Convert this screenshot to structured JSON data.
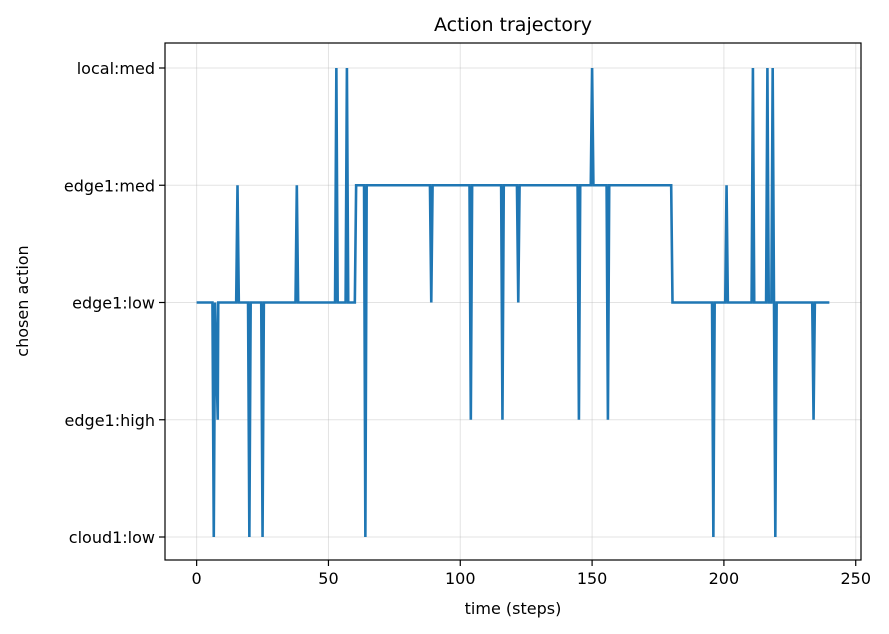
{
  "chart_data": {
    "type": "line",
    "step": true,
    "title": "Action trajectory",
    "xlabel": "time (steps)",
    "ylabel": "chosen action",
    "xlim": [
      -12,
      252
    ],
    "xticks": [
      0,
      50,
      100,
      150,
      200,
      250
    ],
    "categories": [
      "cloud1:low",
      "edge1:high",
      "edge1:low",
      "edge1:med",
      "local:med"
    ],
    "grid": true,
    "series": [
      {
        "color": "#1f77b4",
        "points": [
          [
            0,
            2
          ],
          [
            6,
            2
          ],
          [
            6.5,
            0
          ],
          [
            7,
            2
          ],
          [
            8,
            1
          ],
          [
            8.2,
            2
          ],
          [
            15,
            2
          ],
          [
            15.5,
            3
          ],
          [
            16,
            2
          ],
          [
            19.5,
            2
          ],
          [
            20,
            0
          ],
          [
            20.5,
            2
          ],
          [
            24.5,
            2
          ],
          [
            25,
            0
          ],
          [
            25.5,
            2
          ],
          [
            37.5,
            2
          ],
          [
            38,
            3
          ],
          [
            38.5,
            2
          ],
          [
            52.5,
            2
          ],
          [
            53,
            4
          ],
          [
            53.5,
            2
          ],
          [
            56.5,
            2
          ],
          [
            57,
            4
          ],
          [
            57.5,
            2
          ],
          [
            60,
            2
          ],
          [
            60.5,
            3
          ],
          [
            63.5,
            3
          ],
          [
            64,
            0
          ],
          [
            64.5,
            3
          ],
          [
            88.5,
            3
          ],
          [
            89,
            2
          ],
          [
            89.5,
            3
          ],
          [
            103.5,
            3
          ],
          [
            104,
            1
          ],
          [
            104.5,
            3
          ],
          [
            115.5,
            3
          ],
          [
            116,
            1
          ],
          [
            116.5,
            3
          ],
          [
            121.5,
            3
          ],
          [
            122,
            2
          ],
          [
            122.5,
            3
          ],
          [
            144.5,
            3
          ],
          [
            145,
            1
          ],
          [
            145.5,
            3
          ],
          [
            149.5,
            3
          ],
          [
            150,
            4
          ],
          [
            150.5,
            3
          ],
          [
            155.5,
            3
          ],
          [
            156,
            1
          ],
          [
            156.5,
            3
          ],
          [
            180,
            3
          ],
          [
            180.5,
            2
          ],
          [
            195.5,
            2
          ],
          [
            196,
            0
          ],
          [
            196.5,
            2
          ],
          [
            200.5,
            2
          ],
          [
            201,
            3
          ],
          [
            201.5,
            2
          ],
          [
            210.5,
            2
          ],
          [
            211,
            4
          ],
          [
            211.5,
            2
          ],
          [
            216,
            2
          ],
          [
            216.5,
            4
          ],
          [
            217,
            2
          ],
          [
            218,
            2
          ],
          [
            218.5,
            4
          ],
          [
            219,
            2
          ],
          [
            219.5,
            0
          ],
          [
            220,
            2
          ],
          [
            233.5,
            2
          ],
          [
            234,
            1
          ],
          [
            234.5,
            2
          ],
          [
            240,
            2
          ]
        ]
      }
    ]
  }
}
